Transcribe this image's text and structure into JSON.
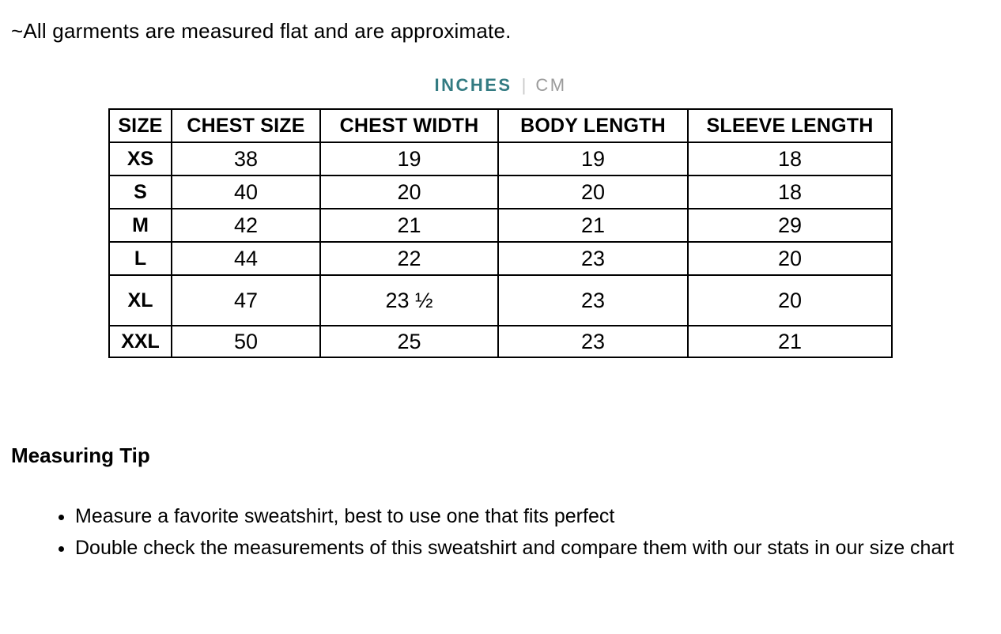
{
  "note": "~All garments are measured flat and are approximate.",
  "unit_toggle": {
    "inches_label": "INCHES",
    "separator": "|",
    "cm_label": "CM",
    "active_unit": "INCHES",
    "active_color": "#337b82",
    "inactive_color": "#9b9b9b"
  },
  "size_chart": {
    "headers": [
      "SIZE",
      "CHEST SIZE",
      "CHEST WIDTH",
      "BODY LENGTH",
      "SLEEVE LENGTH"
    ],
    "rows": [
      {
        "size": "XS",
        "chest_size": "38",
        "chest_width": "19",
        "body_length": "19",
        "sleeve_length": "18"
      },
      {
        "size": "S",
        "chest_size": "40",
        "chest_width": "20",
        "body_length": "20",
        "sleeve_length": "18"
      },
      {
        "size": "M",
        "chest_size": "42",
        "chest_width": "21",
        "body_length": "21",
        "sleeve_length": "29"
      },
      {
        "size": "L",
        "chest_size": "44",
        "chest_width": "22",
        "body_length": "23",
        "sleeve_length": "20"
      },
      {
        "size": "XL",
        "chest_size": "47",
        "chest_width": "23 ½",
        "body_length": "23",
        "sleeve_length": "20"
      },
      {
        "size": "XXL",
        "chest_size": "50",
        "chest_width": "25",
        "body_length": "23",
        "sleeve_length": "21"
      }
    ]
  },
  "measuring_tip": {
    "heading": "Measuring Tip",
    "bullets": [
      "Measure a favorite sweatshirt, best to use one that fits perfect",
      "Double check the measurements of this sweatshirt and compare them with our stats in our size chart"
    ]
  }
}
